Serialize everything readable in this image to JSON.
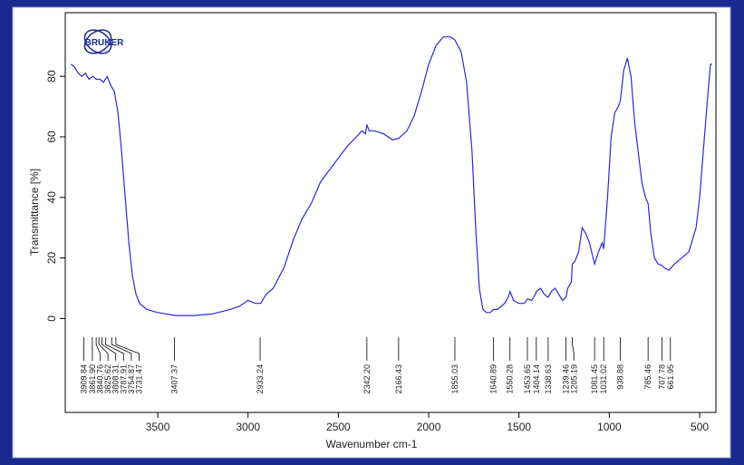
{
  "chart_data": {
    "type": "line",
    "logo": "BRUKER",
    "y_label": "Transmittance [%]",
    "x_label": "Wavenumber cm-1",
    "color": "#2a2ad0",
    "xlim": [
      4012,
      410
    ],
    "ylim": [
      -31,
      101
    ],
    "xticks": [
      3500,
      3000,
      2500,
      2000,
      1500,
      1000,
      500
    ],
    "yticks": [
      0,
      20,
      40,
      60,
      80
    ],
    "x": [
      3980,
      3960,
      3940,
      3920,
      3900,
      3880,
      3860,
      3840,
      3820,
      3800,
      3780,
      3760,
      3740,
      3720,
      3700,
      3680,
      3660,
      3640,
      3620,
      3600,
      3560,
      3500,
      3400,
      3300,
      3200,
      3100,
      3050,
      3000,
      2960,
      2930,
      2900,
      2860,
      2800,
      2750,
      2700,
      2650,
      2600,
      2550,
      2500,
      2450,
      2400,
      2370,
      2350,
      2342,
      2330,
      2300,
      2250,
      2200,
      2166,
      2120,
      2080,
      2040,
      2000,
      1960,
      1920,
      1880,
      1855,
      1820,
      1790,
      1760,
      1740,
      1720,
      1700,
      1680,
      1660,
      1641,
      1620,
      1600,
      1580,
      1560,
      1550,
      1530,
      1500,
      1470,
      1453,
      1430,
      1410,
      1404,
      1380,
      1360,
      1339,
      1320,
      1300,
      1280,
      1260,
      1240,
      1230,
      1210,
      1205,
      1190,
      1170,
      1150,
      1130,
      1110,
      1090,
      1081,
      1060,
      1040,
      1031,
      1010,
      990,
      970,
      950,
      939,
      920,
      900,
      880,
      860,
      840,
      820,
      800,
      785,
      770,
      750,
      730,
      708,
      690,
      670,
      662,
      640,
      600,
      560,
      520,
      500,
      480,
      460,
      440,
      430
    ],
    "values": [
      84,
      83,
      81,
      80,
      81,
      79,
      80,
      79,
      79,
      78,
      80,
      77,
      75,
      68,
      55,
      40,
      25,
      14,
      8,
      5,
      3,
      2,
      1,
      1,
      1.5,
      3,
      4,
      6,
      5,
      5,
      8,
      10,
      17,
      26,
      33,
      38,
      45,
      49,
      53,
      57,
      60,
      62,
      61,
      64,
      62,
      62,
      61,
      59,
      59.5,
      62,
      67,
      75,
      84,
      90,
      93,
      93,
      92,
      88,
      78,
      55,
      30,
      10,
      3,
      2,
      2,
      3,
      3,
      4,
      5,
      7,
      9,
      6,
      5,
      5,
      6.5,
      6,
      8,
      9,
      10,
      8,
      7,
      9,
      10,
      8,
      6,
      7,
      10,
      12,
      18,
      19,
      22,
      30,
      28,
      25,
      20,
      18,
      22,
      25,
      23,
      40,
      60,
      68,
      70,
      72,
      82,
      86,
      80,
      65,
      55,
      45,
      40,
      38,
      28,
      20,
      18,
      17.5,
      16.5,
      16,
      16.5,
      18,
      20,
      22,
      30,
      40,
      55,
      70,
      84,
      84
    ],
    "peaks": [
      3909.84,
      {
        "value": 3861.9,
        "label": "3861.90"
      },
      3840.76,
      3825.62,
      3808.31,
      3787.91,
      3754.87,
      3731.47,
      3407.37,
      2933.24,
      {
        "value": 2342.2,
        "label": "2342.20"
      },
      2166.43,
      1855.03,
      1640.89,
      1550.28,
      1453.65,
      1404.14,
      1338.63,
      1239.46,
      1205.19,
      1081.45,
      1031.02,
      938.88,
      785.46,
      707.78,
      661.95
    ]
  }
}
